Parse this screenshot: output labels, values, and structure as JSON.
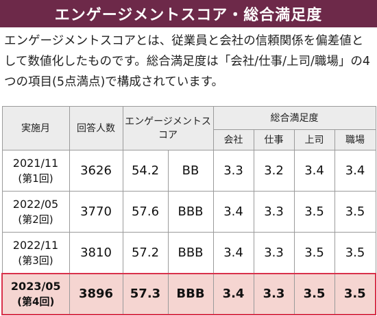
{
  "title": "エンゲージメントスコア・総合満足度",
  "description": "エンゲージメントスコアとは、従業員と会社の信頼関係を偏差値として数値化したものです。総合満足度は「会社/仕事/上司/職場」の4つの項目(5点満点)で構成されています。",
  "table": {
    "headers": {
      "month": "実施月",
      "respondents": "回答人数",
      "engagement": "エンゲージメントスコア",
      "satisfaction": "総合満足度",
      "company": "会社",
      "work": "仕事",
      "boss": "上司",
      "workplace": "職場"
    },
    "rows": [
      {
        "month": "2021/11",
        "round": "(第1回)",
        "respondents": "3626",
        "score": "54.2",
        "grade": "BB",
        "company": "3.3",
        "work": "3.2",
        "boss": "3.4",
        "workplace": "3.4"
      },
      {
        "month": "2022/05",
        "round": "(第2回)",
        "respondents": "3770",
        "score": "57.6",
        "grade": "BBB",
        "company": "3.4",
        "work": "3.3",
        "boss": "3.5",
        "workplace": "3.5"
      },
      {
        "month": "2022/11",
        "round": "(第3回)",
        "respondents": "3810",
        "score": "57.2",
        "grade": "BBB",
        "company": "3.4",
        "work": "3.3",
        "boss": "3.5",
        "workplace": "3.5"
      },
      {
        "month": "2023/05",
        "round": "(第4回)",
        "respondents": "3896",
        "score": "57.3",
        "grade": "BBB",
        "company": "3.4",
        "work": "3.3",
        "boss": "3.5",
        "workplace": "3.5"
      }
    ]
  }
}
